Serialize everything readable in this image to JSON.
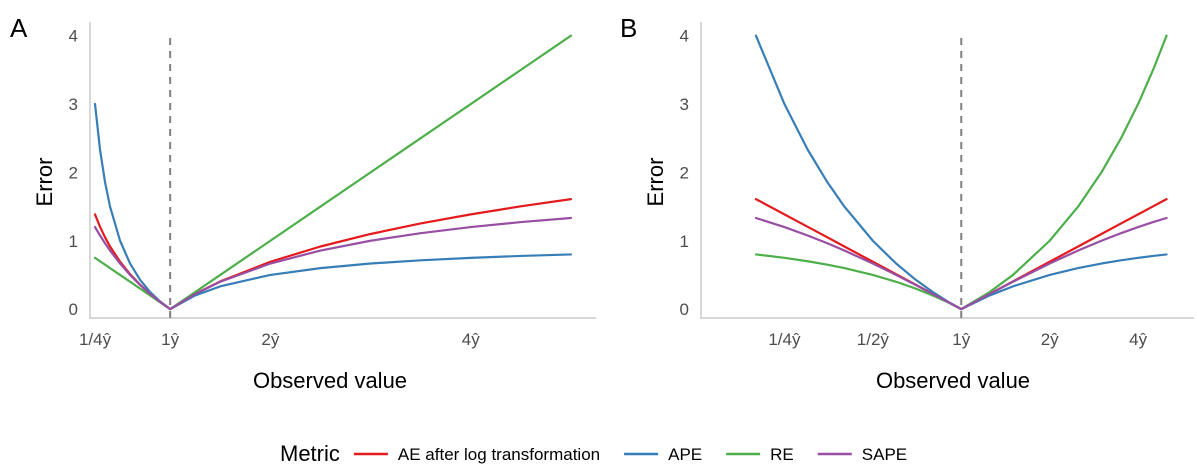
{
  "legend": {
    "title": "Metric",
    "items": [
      {
        "label": "AE after log transformation",
        "color": "#e41a1c"
      },
      {
        "label": "APE",
        "color": "#377eb8"
      },
      {
        "label": "RE",
        "color": "#4daf4a"
      },
      {
        "label": "SAPE",
        "color": "#984ea3"
      }
    ]
  },
  "reference_line": {
    "x": 1,
    "style": "dashed",
    "color": "#808080"
  },
  "chart_data": [
    {
      "panel": "A",
      "type": "line",
      "xscale": "linear",
      "xlabel": "Observed value",
      "ylabel": "Error",
      "xlim": [
        0.2,
        5.25
      ],
      "ylim": [
        -0.13,
        4.2
      ],
      "xticks": [
        {
          "value": 0.25,
          "label": "1/4ŷ"
        },
        {
          "value": 1,
          "label": "1ŷ"
        },
        {
          "value": 2,
          "label": "2ŷ"
        },
        {
          "value": 4,
          "label": "4ŷ"
        }
      ],
      "yticks": [
        0,
        1,
        2,
        3,
        4
      ],
      "x": [
        0.25,
        0.3,
        0.35,
        0.4,
        0.5,
        0.6,
        0.7,
        0.8,
        0.9,
        1.0,
        1.25,
        1.5,
        2.0,
        2.5,
        3.0,
        3.5,
        4.0,
        4.5,
        5.0
      ],
      "series": [
        {
          "name": "AE after log transformation",
          "values": [
            1.386,
            1.204,
            1.05,
            0.916,
            0.693,
            0.511,
            0.357,
            0.223,
            0.105,
            0.0,
            0.223,
            0.405,
            0.693,
            0.916,
            1.099,
            1.253,
            1.386,
            1.504,
            1.609
          ]
        },
        {
          "name": "APE",
          "values": [
            3.0,
            2.333,
            1.857,
            1.5,
            1.0,
            0.667,
            0.429,
            0.25,
            0.111,
            0.0,
            0.2,
            0.333,
            0.5,
            0.6,
            0.667,
            0.714,
            0.75,
            0.778,
            0.8
          ]
        },
        {
          "name": "RE",
          "values": [
            0.75,
            0.7,
            0.65,
            0.6,
            0.5,
            0.4,
            0.3,
            0.2,
            0.1,
            0.0,
            0.25,
            0.5,
            1.0,
            1.5,
            2.0,
            2.5,
            3.0,
            3.5,
            4.0
          ]
        },
        {
          "name": "SAPE",
          "values": [
            1.2,
            1.077,
            0.963,
            0.857,
            0.667,
            0.5,
            0.353,
            0.222,
            0.105,
            0.0,
            0.222,
            0.4,
            0.667,
            0.857,
            1.0,
            1.111,
            1.2,
            1.273,
            1.333
          ]
        }
      ]
    },
    {
      "panel": "B",
      "type": "line",
      "xscale": "log",
      "xlabel": "Observed value",
      "ylabel": "Error",
      "xlim": [
        0.13,
        6.2
      ],
      "ylim": [
        -0.13,
        4.2
      ],
      "xticks": [
        {
          "value": 0.25,
          "label": "1/4ŷ"
        },
        {
          "value": 0.5,
          "label": "1/2ŷ"
        },
        {
          "value": 1,
          "label": "1ŷ"
        },
        {
          "value": 2,
          "label": "2ŷ"
        },
        {
          "value": 4,
          "label": "4ŷ"
        }
      ],
      "yticks": [
        0,
        1,
        2,
        3,
        4
      ],
      "x": [
        0.2,
        0.25,
        0.3,
        0.35,
        0.4,
        0.5,
        0.6,
        0.7,
        0.8,
        0.9,
        1.0,
        1.25,
        1.5,
        2.0,
        2.5,
        3.0,
        3.5,
        4.0,
        4.5,
        5.0
      ],
      "series": [
        {
          "name": "AE after log transformation",
          "values": [
            1.609,
            1.386,
            1.204,
            1.05,
            0.916,
            0.693,
            0.511,
            0.357,
            0.223,
            0.105,
            0.0,
            0.223,
            0.405,
            0.693,
            0.916,
            1.099,
            1.253,
            1.386,
            1.504,
            1.609
          ]
        },
        {
          "name": "APE",
          "values": [
            4.0,
            3.0,
            2.333,
            1.857,
            1.5,
            1.0,
            0.667,
            0.429,
            0.25,
            0.111,
            0.0,
            0.2,
            0.333,
            0.5,
            0.6,
            0.667,
            0.714,
            0.75,
            0.778,
            0.8
          ]
        },
        {
          "name": "RE",
          "values": [
            0.8,
            0.75,
            0.7,
            0.65,
            0.6,
            0.5,
            0.4,
            0.3,
            0.2,
            0.1,
            0.0,
            0.25,
            0.5,
            1.0,
            1.5,
            2.0,
            2.5,
            3.0,
            3.5,
            4.0
          ]
        },
        {
          "name": "SAPE",
          "values": [
            1.333,
            1.2,
            1.077,
            0.963,
            0.857,
            0.667,
            0.5,
            0.353,
            0.222,
            0.105,
            0.0,
            0.222,
            0.4,
            0.667,
            0.857,
            1.0,
            1.111,
            1.2,
            1.273,
            1.333
          ]
        }
      ]
    }
  ]
}
